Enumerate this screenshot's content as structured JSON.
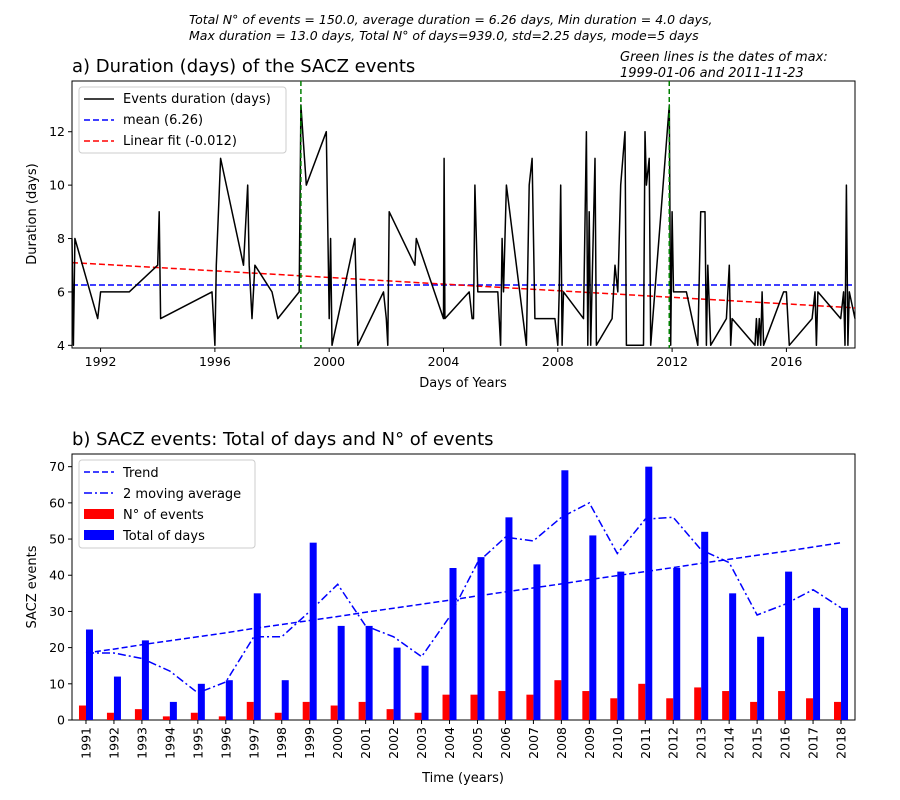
{
  "figure": {
    "suptitle_line1": "Total N° of events = 150.0, average duration = 6.26 days, Min duration = 4.0 days,",
    "suptitle_line2": "Max duration = 13.0 days, Total N° of days=939.0, std=2.25 days, mode=5 days"
  },
  "chart_data": [
    {
      "type": "line",
      "title": "a) Duration (days) of the SACZ events",
      "annotation_line1": "Green lines is the dates of max:",
      "annotation_line2": "1999-01-06 and 2011-11-23",
      "xlabel": "Days of Years",
      "ylabel": "Duration (days)",
      "xlim": [
        1991.0,
        2018.4
      ],
      "ylim": [
        3.9,
        13.9
      ],
      "x_ticks": [
        1992,
        1996,
        2000,
        2004,
        2008,
        2012,
        2016
      ],
      "y_ticks": [
        4,
        6,
        8,
        10,
        12
      ],
      "legend_position": "top-left",
      "mean": 6.26,
      "max_dates_decimal": [
        1999.01,
        2011.9
      ],
      "series": [
        {
          "name": "Events duration (days)",
          "color": "#000000",
          "style": "solid",
          "points": [
            [
              1991.0,
              8
            ],
            [
              1991.05,
              4
            ],
            [
              1991.1,
              8
            ],
            [
              1991.9,
              5
            ],
            [
              1992.0,
              6
            ],
            [
              1993.0,
              6
            ],
            [
              1994.0,
              7
            ],
            [
              1994.05,
              9
            ],
            [
              1994.1,
              5
            ],
            [
              1995.9,
              6
            ],
            [
              1996.0,
              4
            ],
            [
              1996.05,
              7
            ],
            [
              1996.2,
              11
            ],
            [
              1997.0,
              7
            ],
            [
              1997.15,
              10
            ],
            [
              1997.2,
              7
            ],
            [
              1997.3,
              5
            ],
            [
              1997.4,
              7
            ],
            [
              1998.0,
              6
            ],
            [
              1998.2,
              5
            ],
            [
              1998.95,
              6
            ],
            [
              1999.01,
              13
            ],
            [
              1999.2,
              10
            ],
            [
              1999.9,
              12
            ],
            [
              2000.0,
              5
            ],
            [
              2000.05,
              8
            ],
            [
              2000.1,
              4
            ],
            [
              2000.9,
              8
            ],
            [
              2001.0,
              4
            ],
            [
              2001.9,
              6
            ],
            [
              2002.0,
              5
            ],
            [
              2002.05,
              4
            ],
            [
              2002.1,
              9
            ],
            [
              2003.0,
              7
            ],
            [
              2003.05,
              8
            ],
            [
              2004.0,
              5
            ],
            [
              2004.02,
              11
            ],
            [
              2004.05,
              5
            ],
            [
              2004.9,
              6
            ],
            [
              2005.0,
              5
            ],
            [
              2005.05,
              5
            ],
            [
              2005.1,
              10
            ],
            [
              2005.2,
              6
            ],
            [
              2005.9,
              6
            ],
            [
              2006.0,
              4
            ],
            [
              2006.05,
              8
            ],
            [
              2006.1,
              6
            ],
            [
              2006.2,
              10
            ],
            [
              2006.9,
              4
            ],
            [
              2007.0,
              10
            ],
            [
              2007.1,
              11
            ],
            [
              2007.2,
              5
            ],
            [
              2007.9,
              5
            ],
            [
              2008.0,
              4
            ],
            [
              2008.05,
              6
            ],
            [
              2008.1,
              10
            ],
            [
              2008.15,
              4
            ],
            [
              2008.2,
              6
            ],
            [
              2008.9,
              5
            ],
            [
              2009.0,
              12
            ],
            [
              2009.05,
              4
            ],
            [
              2009.1,
              9
            ],
            [
              2009.15,
              4
            ],
            [
              2009.3,
              11
            ],
            [
              2009.35,
              4
            ],
            [
              2009.9,
              5
            ],
            [
              2010.0,
              7
            ],
            [
              2010.1,
              6
            ],
            [
              2010.2,
              10
            ],
            [
              2010.35,
              12
            ],
            [
              2010.4,
              4
            ],
            [
              2010.9,
              4
            ],
            [
              2011.0,
              4
            ],
            [
              2011.05,
              12
            ],
            [
              2011.1,
              10
            ],
            [
              2011.2,
              11
            ],
            [
              2011.25,
              4
            ],
            [
              2011.9,
              13
            ],
            [
              2011.95,
              4
            ],
            [
              2012.0,
              9
            ],
            [
              2012.05,
              6
            ],
            [
              2012.5,
              6
            ],
            [
              2012.9,
              4
            ],
            [
              2013.0,
              9
            ],
            [
              2013.15,
              9
            ],
            [
              2013.2,
              4
            ],
            [
              2013.25,
              7
            ],
            [
              2013.35,
              4
            ],
            [
              2013.9,
              5
            ],
            [
              2014.0,
              7
            ],
            [
              2014.05,
              4
            ],
            [
              2014.1,
              5
            ],
            [
              2014.9,
              4
            ],
            [
              2014.95,
              5
            ],
            [
              2015.0,
              4
            ],
            [
              2015.05,
              5
            ],
            [
              2015.1,
              4
            ],
            [
              2015.15,
              6
            ],
            [
              2015.2,
              4
            ],
            [
              2015.9,
              6
            ],
            [
              2016.0,
              6
            ],
            [
              2016.1,
              4
            ],
            [
              2016.9,
              5
            ],
            [
              2017.0,
              6
            ],
            [
              2017.05,
              4
            ],
            [
              2017.1,
              6
            ],
            [
              2017.9,
              5
            ],
            [
              2018.0,
              6
            ],
            [
              2018.05,
              4
            ],
            [
              2018.1,
              10
            ],
            [
              2018.15,
              4
            ],
            [
              2018.2,
              6
            ],
            [
              2018.4,
              5
            ]
          ]
        },
        {
          "name": "mean (6.26)",
          "color": "#0000ff",
          "style": "dashed",
          "points": [
            [
              1991.0,
              6.26
            ],
            [
              2018.4,
              6.26
            ]
          ]
        },
        {
          "name": "Linear fit (-0.012)",
          "color": "#ff0000",
          "style": "dashed",
          "points": [
            [
              1991.0,
              7.1
            ],
            [
              2018.4,
              5.4
            ]
          ]
        }
      ]
    },
    {
      "type": "bar",
      "title": "b) SACZ events: Total of days and N° of events",
      "xlabel": "Time (years)",
      "ylabel": "SACZ events",
      "ylim": [
        0,
        73.5
      ],
      "y_ticks": [
        0,
        10,
        20,
        30,
        40,
        50,
        60,
        70
      ],
      "legend_position": "top-left",
      "categories": [
        "1991",
        "1992",
        "1993",
        "1994",
        "1995",
        "1996",
        "1997",
        "1998",
        "1999",
        "2000",
        "2001",
        "2002",
        "2003",
        "2004",
        "2005",
        "2006",
        "2007",
        "2008",
        "2009",
        "2010",
        "2011",
        "2012",
        "2013",
        "2014",
        "2015",
        "2016",
        "2017",
        "2018"
      ],
      "series": [
        {
          "name": "N° of events",
          "type": "bar",
          "color": "#ff0000",
          "values": [
            4,
            2,
            3,
            1,
            2,
            1,
            5,
            2,
            5,
            4,
            5,
            3,
            2,
            7,
            7,
            8,
            7,
            11,
            8,
            6,
            10,
            6,
            9,
            8,
            5,
            8,
            6,
            5
          ]
        },
        {
          "name": "Total of days",
          "type": "bar",
          "color": "#0000ff",
          "values": [
            25,
            12,
            22,
            5,
            10,
            11,
            35,
            11,
            49,
            26,
            26,
            20,
            15,
            42,
            45,
            56,
            43,
            69,
            51,
            41,
            70,
            42,
            52,
            35,
            23,
            41,
            31,
            31
          ]
        },
        {
          "name": "Trend",
          "type": "line",
          "style": "dashed",
          "color": "#0000ff",
          "values": [
            18.5,
            19.6,
            20.8,
            21.9,
            23.0,
            24.1,
            25.3,
            26.4,
            27.5,
            28.6,
            29.8,
            30.9,
            32.0,
            33.1,
            34.3,
            35.4,
            36.5,
            37.6,
            38.8,
            39.9,
            41.0,
            42.1,
            43.3,
            44.4,
            45.5,
            46.6,
            47.8,
            49.0
          ]
        },
        {
          "name": "2 moving average",
          "type": "line",
          "style": "dashdot",
          "color": "#0000ff",
          "values": [
            18.5,
            18.5,
            17.0,
            13.5,
            7.5,
            10.5,
            23.0,
            23.0,
            30.0,
            37.5,
            26.0,
            23.0,
            17.5,
            28.5,
            43.5,
            50.5,
            49.5,
            56.0,
            60.0,
            46.0,
            55.5,
            56.0,
            47.0,
            43.5,
            29.0,
            32.0,
            36.0,
            31.0
          ]
        }
      ]
    }
  ]
}
